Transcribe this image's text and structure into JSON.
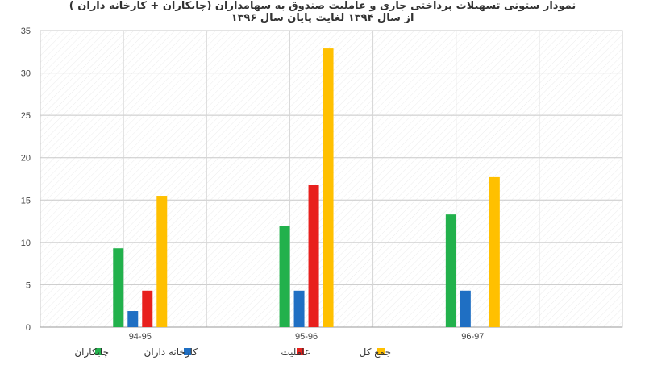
{
  "chart_data": {
    "type": "bar",
    "title": "نمودار ستونی تسهیلات پرداختی جاری و عاملیت صندوق به سهامداران (چایکاران + کارخانه داران )",
    "subtitle": "از سال ۱۳۹۴ لغایت پایان سال ۱۳۹۶",
    "categories": [
      "94-95",
      "95-96",
      "96-97"
    ],
    "series": [
      {
        "name": "چایکاران",
        "color": "#22b14c",
        "values": [
          9.3,
          11.9,
          13.3
        ]
      },
      {
        "name": "کارخانه داران",
        "color": "#1f6fc3",
        "values": [
          1.9,
          4.3,
          4.3
        ]
      },
      {
        "name": "عاملیت",
        "color": "#e8201d",
        "values": [
          4.3,
          16.8,
          null
        ]
      },
      {
        "name": "جمع کل",
        "color": "#ffc000",
        "values": [
          15.5,
          32.9,
          17.7
        ]
      }
    ],
    "ylim": [
      0,
      35
    ],
    "yticks": [
      0,
      5,
      10,
      15,
      20,
      25,
      30,
      35
    ],
    "grid": true,
    "legend": "bottom"
  }
}
